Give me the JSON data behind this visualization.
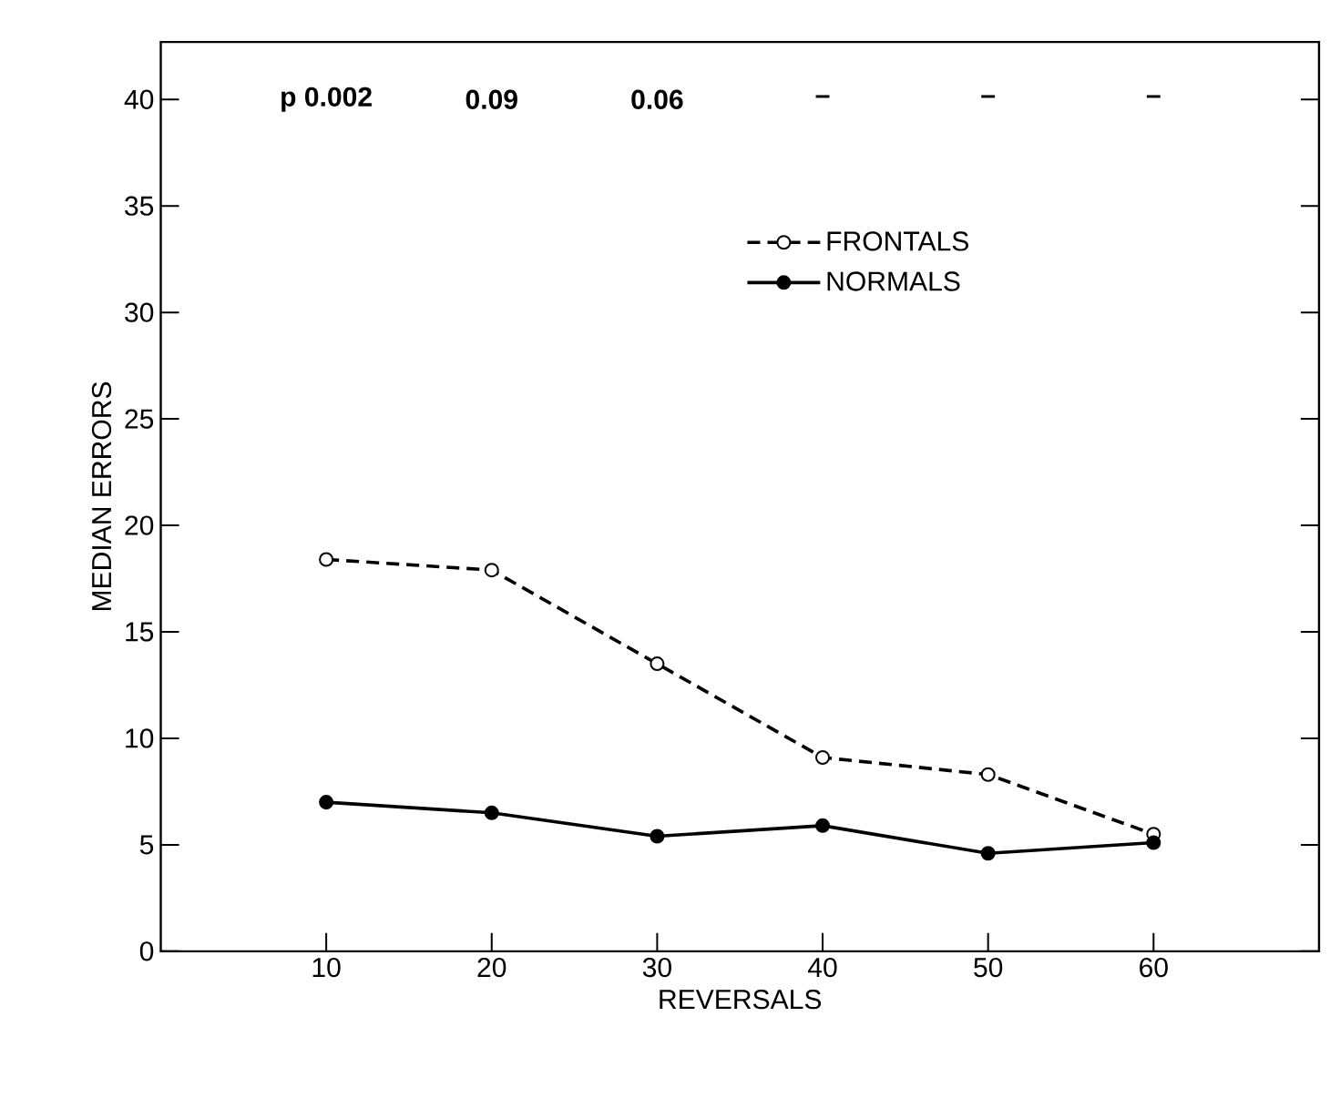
{
  "chart_data": {
    "type": "line",
    "xlabel": "REVERSALS",
    "ylabel": "MEDIAN ERRORS",
    "x": [
      10,
      20,
      30,
      40,
      50,
      60
    ],
    "series": [
      {
        "name": "FRONTALS",
        "color": "#000000",
        "line_style": "dashed",
        "values": [
          18.4,
          17.9,
          13.5,
          9.1,
          8.3,
          5.5
        ]
      },
      {
        "name": "NORMALS",
        "color": "#000000",
        "line_style": "solid",
        "values": [
          7.0,
          6.5,
          5.4,
          5.9,
          4.6,
          5.1
        ]
      }
    ],
    "xlim": [
      0,
      70
    ],
    "ylim": [
      0,
      42.7
    ],
    "xticks": [
      10,
      20,
      30,
      40,
      50,
      60
    ],
    "yticks": [
      0,
      5,
      10,
      15,
      20,
      25,
      30,
      35,
      40
    ],
    "marker": "circle",
    "legend": "top",
    "grid": false,
    "annotations": [
      "p 0.002",
      "0.09",
      "0.06",
      "–",
      "–",
      "–"
    ]
  }
}
